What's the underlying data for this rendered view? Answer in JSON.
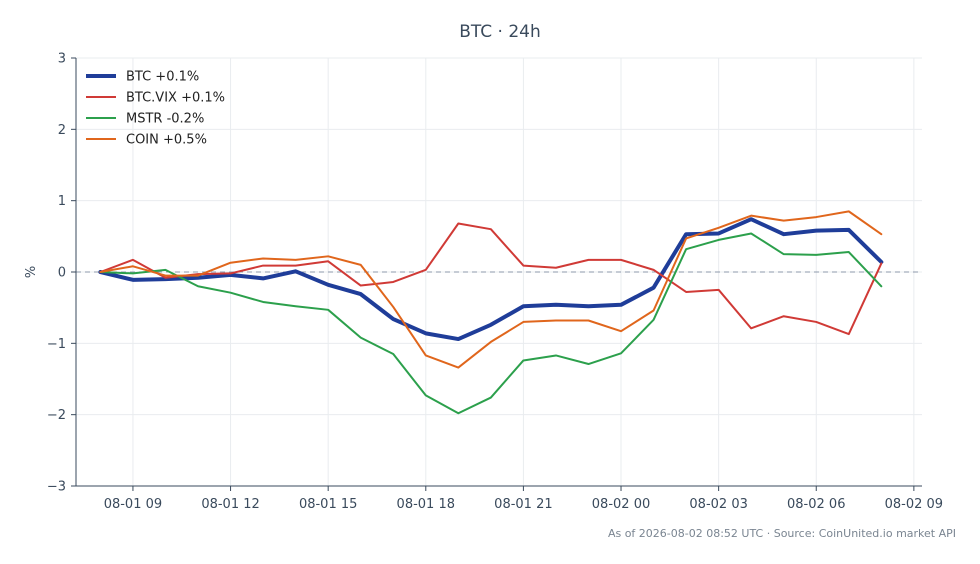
{
  "chart_data": {
    "type": "line",
    "title": "BTC · 24h",
    "xlabel": "",
    "ylabel": "%",
    "ylim": [
      -3,
      3
    ],
    "xlim": [
      "2026-08-01 07:15",
      "2026-08-02 09:15"
    ],
    "yticks": [
      {
        "value": -3,
        "label": "−3"
      },
      {
        "value": -2,
        "label": "−2"
      },
      {
        "value": -1,
        "label": "−1"
      },
      {
        "value": 0,
        "label": "0"
      },
      {
        "value": 1,
        "label": "1"
      },
      {
        "value": 2,
        "label": "2"
      },
      {
        "value": 3,
        "label": "3"
      }
    ],
    "xticks": [
      {
        "value": "2026-08-01 09:00",
        "label": "08-01 09"
      },
      {
        "value": "2026-08-01 12:00",
        "label": "08-01 12"
      },
      {
        "value": "2026-08-01 15:00",
        "label": "08-01 15"
      },
      {
        "value": "2026-08-01 18:00",
        "label": "08-01 18"
      },
      {
        "value": "2026-08-01 21:00",
        "label": "08-01 21"
      },
      {
        "value": "2026-08-02 00:00",
        "label": "08-02 00"
      },
      {
        "value": "2026-08-02 03:00",
        "label": "08-02 03"
      },
      {
        "value": "2026-08-02 06:00",
        "label": "08-02 06"
      },
      {
        "value": "2026-08-02 09:00",
        "label": "08-02 09"
      }
    ],
    "grid": true,
    "zero_line": {
      "value": 0,
      "style": "dashed",
      "color": "#8e99ab"
    },
    "legend_position": "top-left",
    "x": [
      "2026-08-01 08:00",
      "2026-08-01 09:00",
      "2026-08-01 10:00",
      "2026-08-01 11:00",
      "2026-08-01 12:00",
      "2026-08-01 13:00",
      "2026-08-01 14:00",
      "2026-08-01 15:00",
      "2026-08-01 16:00",
      "2026-08-01 17:00",
      "2026-08-01 18:00",
      "2026-08-01 19:00",
      "2026-08-01 20:00",
      "2026-08-01 21:00",
      "2026-08-01 22:00",
      "2026-08-01 23:00",
      "2026-08-02 00:00",
      "2026-08-02 01:00",
      "2026-08-02 02:00",
      "2026-08-02 03:00",
      "2026-08-02 04:00",
      "2026-08-02 05:00",
      "2026-08-02 06:00",
      "2026-08-02 07:00",
      "2026-08-02 08:00"
    ],
    "series": [
      {
        "name": "BTC +0.1%",
        "color": "#1f3d99",
        "width": 4,
        "values": [
          0.0,
          -0.11,
          -0.1,
          -0.08,
          -0.04,
          -0.09,
          0.01,
          -0.18,
          -0.31,
          -0.66,
          -0.86,
          -0.94,
          -0.74,
          -0.48,
          -0.46,
          -0.48,
          -0.46,
          -0.22,
          0.53,
          0.54,
          0.74,
          0.53,
          0.58,
          0.59,
          0.14
        ]
      },
      {
        "name": "BTC.VIX +0.1%",
        "color": "#d03a36",
        "width": 2,
        "values": [
          0.0,
          0.17,
          -0.08,
          -0.03,
          -0.02,
          0.09,
          0.09,
          0.15,
          -0.19,
          -0.14,
          0.03,
          0.68,
          0.6,
          0.09,
          0.06,
          0.17,
          0.17,
          0.03,
          -0.28,
          -0.25,
          -0.79,
          -0.62,
          -0.7,
          -0.87,
          0.12
        ]
      },
      {
        "name": "MSTR -0.2%",
        "color": "#2ca04c",
        "width": 2,
        "values": [
          0.0,
          -0.02,
          0.03,
          -0.2,
          -0.29,
          -0.42,
          -0.48,
          -0.53,
          -0.92,
          -1.15,
          -1.73,
          -1.98,
          -1.76,
          -1.24,
          -1.17,
          -1.29,
          -1.14,
          -0.67,
          0.32,
          0.45,
          0.54,
          0.25,
          0.24,
          0.28,
          -0.2
        ]
      },
      {
        "name": "COIN +0.5%",
        "color": "#e0661c",
        "width": 2,
        "values": [
          0.0,
          0.08,
          -0.05,
          -0.05,
          0.13,
          0.19,
          0.17,
          0.22,
          0.1,
          -0.49,
          -1.17,
          -1.34,
          -0.98,
          -0.7,
          -0.68,
          -0.68,
          -0.83,
          -0.54,
          0.47,
          0.62,
          0.79,
          0.72,
          0.77,
          0.85,
          0.53
        ]
      }
    ]
  },
  "footer": {
    "text": "As of 2026-08-02 08:52 UTC · Source: CoinUnited.io market API"
  }
}
